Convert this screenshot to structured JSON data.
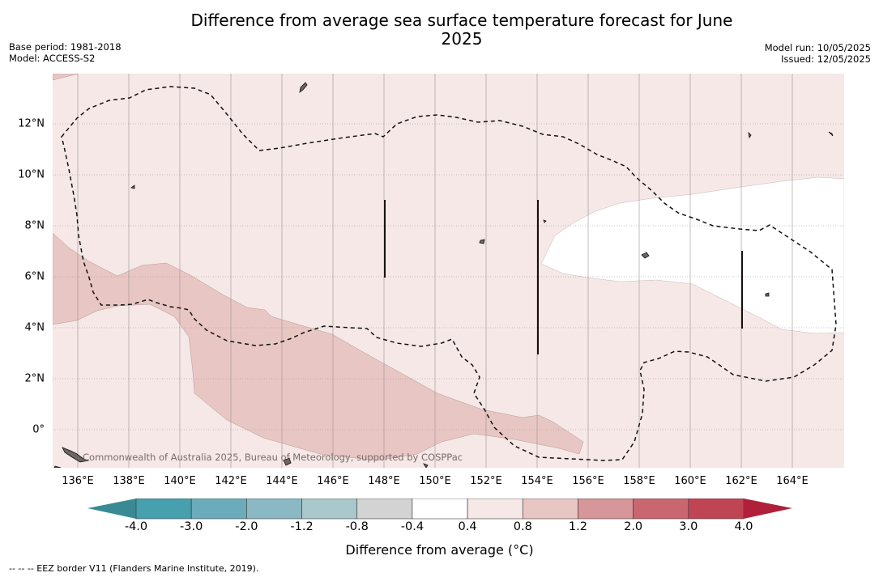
{
  "title": "Difference from average sea surface temperature forecast for June 2025",
  "header": {
    "base_period": "Base period: 1981-2018",
    "model": "Model: ACCESS-S2",
    "model_run": "Model run: 10/05/2025",
    "issued": "Issued: 12/05/2025"
  },
  "map": {
    "x_ticks": [
      "136°E",
      "138°E",
      "140°E",
      "142°E",
      "144°E",
      "146°E",
      "148°E",
      "150°E",
      "152°E",
      "154°E",
      "156°E",
      "158°E",
      "160°E",
      "162°E",
      "164°E"
    ],
    "y_ticks": [
      "12°N",
      "10°N",
      "8°N",
      "6°N",
      "4°N",
      "2°N",
      "0°"
    ],
    "credit": "Commonwealth of Australia 2025, Bureau of Meteorology, supported by COSPPac",
    "colors": {
      "ocean_light_pink": "#f5e8e7",
      "band_pink": "#e8c6c3",
      "neutral_white": "#ffffff",
      "land": "#6e6464"
    }
  },
  "colorbar": {
    "title": "Difference from average (°C)",
    "labels": [
      "-4.0",
      "-3.0",
      "-2.0",
      "-1.2",
      "-0.8",
      "-0.4",
      "0.4",
      "0.8",
      "1.2",
      "2.0",
      "3.0",
      "4.0"
    ],
    "low_extend_color": "#3a8a95",
    "high_extend_color": "#b0203a",
    "bins": [
      "#46a0ae",
      "#6aacba",
      "#8ab9c3",
      "#a9c8cb",
      "#d3d3d3",
      "#ffffff",
      "#f5e8e7",
      "#e8c6c3",
      "#d6969a",
      "#ca6670",
      "#bf4555"
    ]
  },
  "footnote": "-- -- -- EEZ border V11 (Flanders Marine Institute, 2019)."
}
